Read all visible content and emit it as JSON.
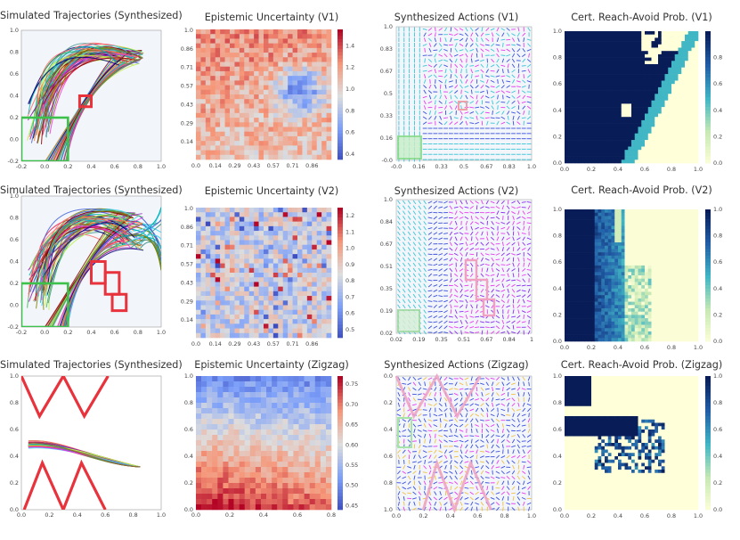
{
  "colors": {
    "goal": "#3cc14a",
    "obstacle": "#e8323c",
    "bg": "#f2f5fa",
    "cool": "#3b4cc0",
    "warm": "#b40426",
    "dark_blue": "#0d1b55",
    "cream": "#fbfdd2"
  },
  "rows": [
    {
      "traj_title": "Simulated Trajectories (Synthesized)",
      "epi_title": "Epistemic Uncertainty (V1)",
      "act_title": "Synthesized Actions (V1)",
      "ra_title": "Cert. Reach-Avoid Prob. (V1)"
    },
    {
      "traj_title": "Simulated Trajectories (Synthesized)",
      "epi_title": "Epistemic Uncertainty (V2)",
      "act_title": "Synthesized Actions (V2)",
      "ra_title": "Cert. Reach-Avoid Prob. (V2)"
    },
    {
      "traj_title": "Simulated Trajectories (Synthesized)",
      "epi_title": "Epistemic Uncertainty (Zigzag)",
      "act_title": "Synthesized Actions (Zigzag)",
      "ra_title": "Cert. Reach-Avoid Prob. (Zigzag)"
    }
  ],
  "chart_data": [
    {
      "type": "line",
      "title": "Simulated Trajectories (Synthesized)",
      "xlim": [
        -0.2,
        1.0
      ],
      "ylim": [
        -0.2,
        1.0
      ],
      "xticks": [
        "-0.2",
        "0.0",
        "0.2",
        "0.4",
        "0.6",
        "0.8",
        "1.0"
      ],
      "yticks": [
        "-0.2",
        "0.0",
        "0.2",
        "0.4",
        "0.6",
        "0.8",
        "1.0"
      ],
      "goal": {
        "x": [
          -0.2,
          0.2
        ],
        "y": [
          -0.2,
          0.2
        ]
      },
      "obstacles": [
        {
          "x": [
            0.3,
            0.4
          ],
          "y": [
            0.3,
            0.4
          ]
        }
      ]
    },
    {
      "type": "heatmap",
      "title": "Epistemic Uncertainty (V1)",
      "xticks": [
        "0.0",
        "0.14",
        "0.29",
        "0.43",
        "0.57",
        "0.71",
        "0.86"
      ],
      "yticks": [
        "1.0",
        "0.86",
        "0.71",
        "0.57",
        "0.43",
        "0.29",
        "0.14"
      ],
      "colorbar": {
        "ticks": [
          "1.4",
          "1.2",
          "1.0",
          "0.8",
          "0.6",
          "0.4"
        ],
        "range": [
          0.35,
          1.55
        ]
      }
    },
    {
      "type": "scatter",
      "title": "Synthesized Actions (V1)",
      "xticks": [
        "-0.0",
        "0.16",
        "0.33",
        "0.5",
        "0.67",
        "0.83",
        "1.0"
      ],
      "yticks": [
        "1.0",
        "0.83",
        "0.67",
        "0.5",
        "0.33",
        "0.16",
        "-0.0"
      ]
    },
    {
      "type": "heatmap",
      "title": "Cert. Reach-Avoid Prob. (V1)",
      "xticks": [
        "0.0",
        "0.2",
        "0.4",
        "0.6",
        "0.8",
        "1.0"
      ],
      "yticks": [
        "0.0",
        "0.2",
        "0.4",
        "0.6",
        "0.8",
        "1.0"
      ],
      "colorbar": {
        "ticks": [
          "0.0",
          "0.2",
          "0.4",
          "0.6",
          "0.8"
        ],
        "range": [
          0,
          1
        ]
      }
    },
    {
      "type": "line",
      "title": "Simulated Trajectories (Synthesized)",
      "xlim": [
        -0.2,
        1.0
      ],
      "ylim": [
        -0.2,
        1.0
      ],
      "xticks": [
        "-0.2",
        "0.0",
        "0.2",
        "0.4",
        "0.6",
        "0.8",
        "1.0"
      ],
      "yticks": [
        "-0.2",
        "0.0",
        "0.2",
        "0.4",
        "0.6",
        "0.8",
        "1.0"
      ],
      "goal": {
        "x": [
          -0.2,
          0.2
        ],
        "y": [
          -0.2,
          0.2
        ]
      },
      "obstacles": [
        {
          "x": [
            0.4,
            0.52
          ],
          "y": [
            0.2,
            0.4
          ]
        },
        {
          "x": [
            0.52,
            0.64
          ],
          "y": [
            0.1,
            0.3
          ]
        },
        {
          "x": [
            0.58,
            0.7
          ],
          "y": [
            -0.05,
            0.1
          ]
        }
      ]
    },
    {
      "type": "heatmap",
      "title": "Epistemic Uncertainty (V2)",
      "xticks": [
        "0.0",
        "0.14",
        "0.29",
        "0.43",
        "0.57",
        "0.71",
        "0.86"
      ],
      "yticks": [
        "1.0",
        "0.86",
        "0.71",
        "0.57",
        "0.43",
        "0.29",
        "0.14"
      ],
      "colorbar": {
        "ticks": [
          "1.2",
          "1.1",
          "1.0",
          "0.9",
          "0.8",
          "0.7",
          "0.6",
          "0.5"
        ],
        "range": [
          0.45,
          1.25
        ]
      }
    },
    {
      "type": "scatter",
      "title": "Synthesized Actions (V2)",
      "xticks": [
        "0.02",
        "0.19",
        "0.35",
        "0.51",
        "0.67",
        "0.84",
        "1"
      ],
      "yticks": [
        "1.0",
        "0.84",
        "0.67",
        "0.51",
        "0.35",
        "0.19",
        "0.02"
      ]
    },
    {
      "type": "heatmap",
      "title": "Cert. Reach-Avoid Prob. (V2)",
      "xticks": [
        "0.0",
        "0.2",
        "0.4",
        "0.6",
        "0.8",
        "1.0"
      ],
      "yticks": [
        "0.0",
        "0.2",
        "0.4",
        "0.6",
        "0.8",
        "1.0"
      ],
      "colorbar": {
        "ticks": [
          "0.0",
          "0.2",
          "0.4",
          "0.6",
          "0.8",
          "1.0"
        ],
        "range": [
          0,
          1
        ]
      }
    },
    {
      "type": "line",
      "title": "Simulated Trajectories (Synthesized)",
      "xlim": [
        0,
        1
      ],
      "ylim": [
        0,
        1
      ],
      "xticks": [
        "0.0",
        "0.2",
        "0.4",
        "0.6",
        "0.8",
        "1.0"
      ],
      "yticks": [
        "0.0",
        "0.2",
        "0.4",
        "0.6",
        "0.8",
        "1.0"
      ],
      "obstacles": [
        {
          "type": "zigzag",
          "y": [
            0.7,
            1.0
          ]
        },
        {
          "type": "zigzag",
          "y": [
            0.0,
            0.35
          ]
        }
      ]
    },
    {
      "type": "heatmap",
      "title": "Epistemic Uncertainty (Zigzag)",
      "xticks": [
        "0.0",
        "0.2",
        "0.4",
        "0.6",
        "0.8"
      ],
      "yticks": [
        "0.0",
        "0.2",
        "0.4",
        "0.6",
        "0.8",
        "1.0"
      ],
      "colorbar": {
        "ticks": [
          "0.75",
          "0.70",
          "0.65",
          "0.60",
          "0.55",
          "0.50",
          "0.45"
        ],
        "range": [
          0.44,
          0.77
        ]
      }
    },
    {
      "type": "scatter",
      "title": "Synthesized Actions (Zigzag)",
      "xticks": [
        "0.0",
        "0.2",
        "0.4",
        "0.6",
        "0.8",
        "1.0"
      ],
      "yticks": [
        "0.0",
        "0.2",
        "0.4",
        "0.6",
        "0.8",
        "1.0"
      ]
    },
    {
      "type": "heatmap",
      "title": "Cert. Reach-Avoid Prob. (Zigzag)",
      "xticks": [
        "0.0",
        "0.2",
        "0.4",
        "0.6",
        "0.8",
        "1.0"
      ],
      "yticks": [
        "0.0",
        "0.2",
        "0.4",
        "0.6",
        "0.8",
        "1.0"
      ],
      "colorbar": {
        "ticks": [
          "0.0",
          "0.2",
          "0.4",
          "0.6",
          "0.8",
          "1.0"
        ],
        "range": [
          0,
          1
        ]
      }
    }
  ]
}
